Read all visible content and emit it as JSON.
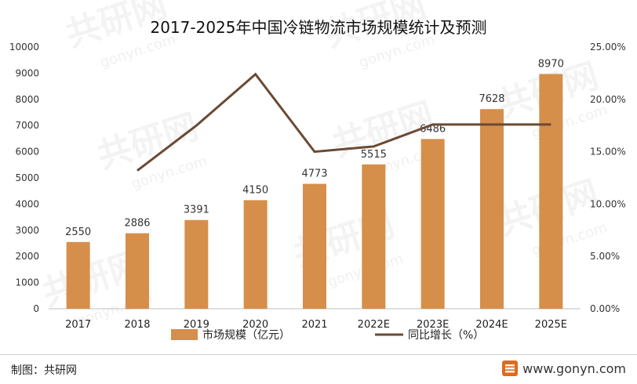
{
  "chart_data": {
    "type": "bar+line",
    "title": "2017-2025年中国冷链物流市场规模统计及预测",
    "categories": [
      "2017",
      "2018",
      "2019",
      "2020",
      "2021",
      "2022E",
      "2023E",
      "2024E",
      "2025E"
    ],
    "series": [
      {
        "name": "市场规模（亿元）",
        "type": "bar",
        "axis": "left",
        "color": "#D68E4B",
        "values": [
          2550,
          2886,
          3391,
          4150,
          4773,
          5515,
          6486,
          7628,
          8970
        ],
        "labels": [
          "2550",
          "2886",
          "3391",
          "4150",
          "4773",
          "5515",
          "6486",
          "7628",
          "8970"
        ]
      },
      {
        "name": "同比增长（%）",
        "type": "line",
        "axis": "right",
        "color": "#6B4A34",
        "values": [
          null,
          13.2,
          17.5,
          22.4,
          15.0,
          15.5,
          17.6,
          17.6,
          17.6
        ]
      }
    ],
    "y_left": {
      "min": 0,
      "max": 10000,
      "ticks": [
        "0",
        "1000",
        "2000",
        "3000",
        "4000",
        "5000",
        "6000",
        "7000",
        "8000",
        "9000",
        "10000"
      ]
    },
    "y_right": {
      "min": 0,
      "max": 25,
      "ticks": [
        "0.00%",
        "5.00%",
        "10.00%",
        "15.00%",
        "20.00%",
        "25.00%"
      ]
    },
    "grid": false,
    "legend_position": "bottom"
  },
  "footer": {
    "source": "制图：共研网",
    "url": "www.gonyn.com"
  },
  "watermark": {
    "text": "共研网",
    "sub": "gonyn.com"
  }
}
